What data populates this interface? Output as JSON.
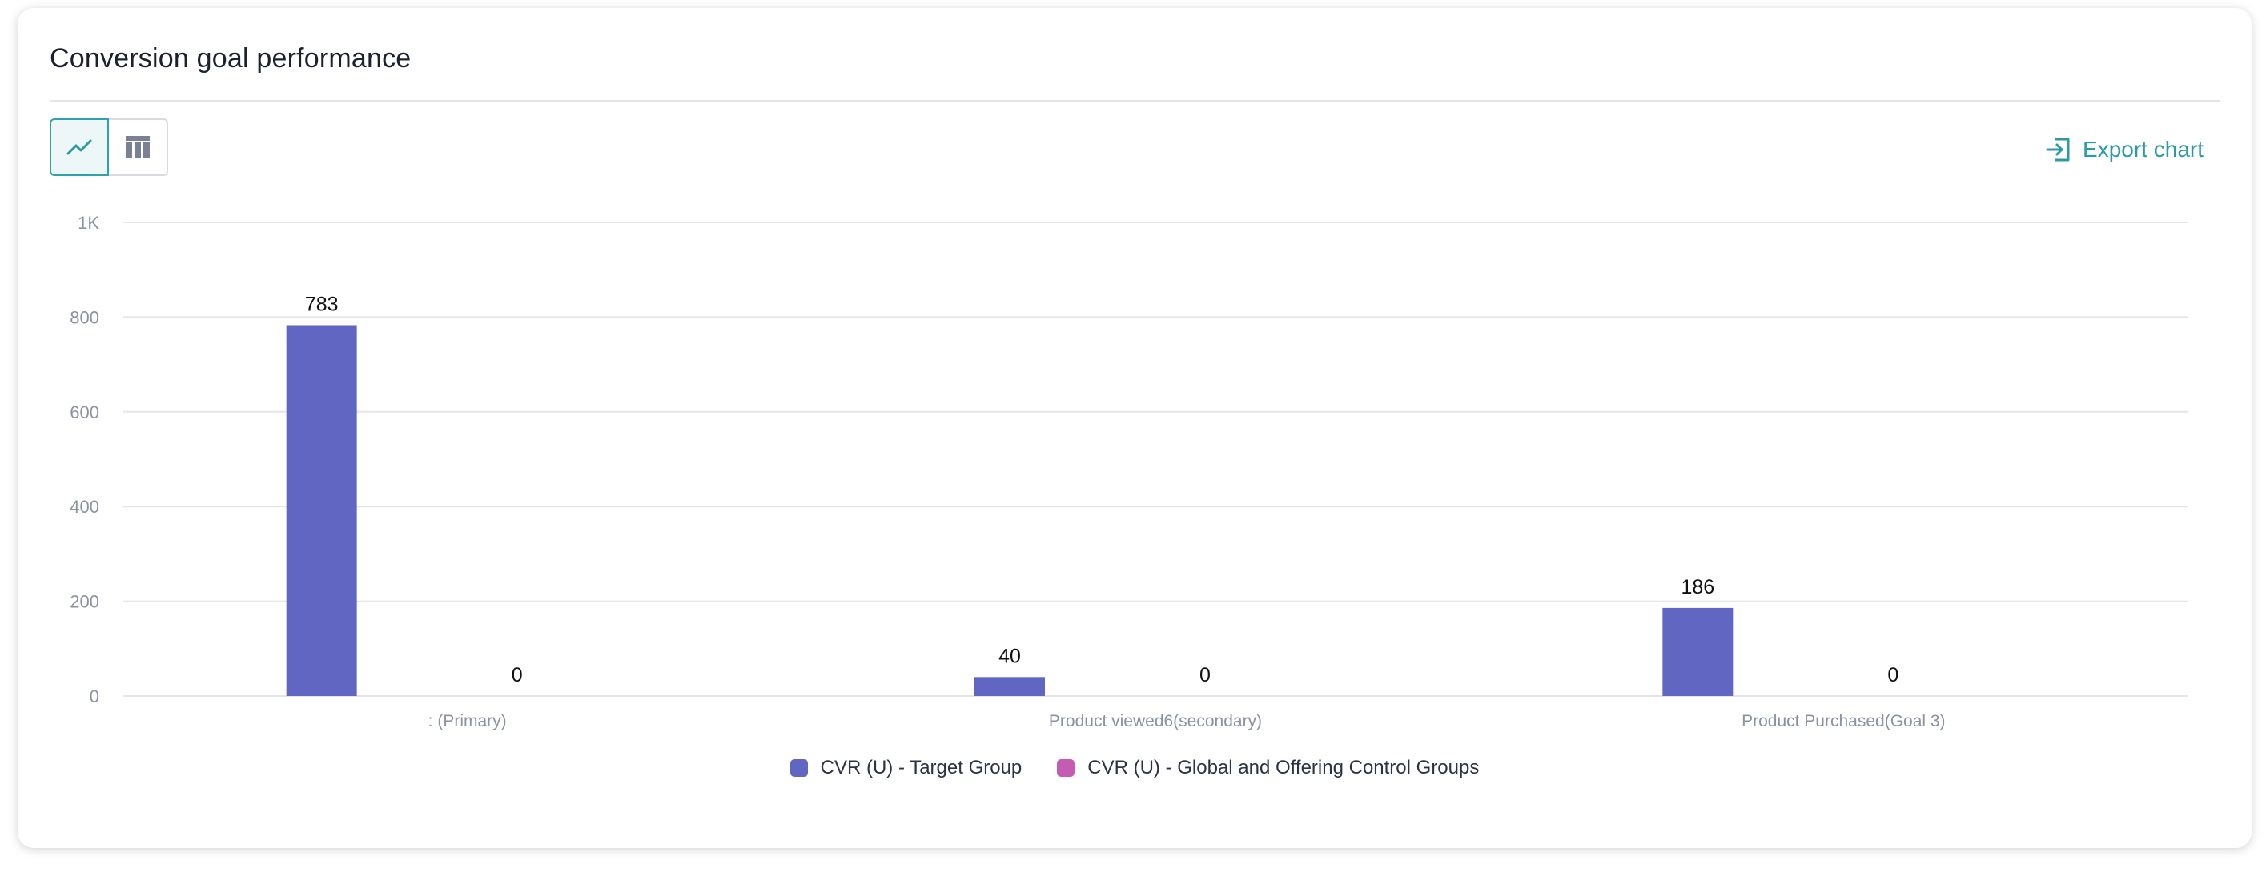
{
  "header": {
    "title": "Conversion goal performance",
    "export_label": "Export chart"
  },
  "view_toggle": {
    "options": [
      {
        "name": "line-chart",
        "icon": "line-chart-icon",
        "active": true
      },
      {
        "name": "table",
        "icon": "table-icon",
        "active": false
      }
    ]
  },
  "colors": {
    "accent": "#2a9aa4",
    "series_target": "#6166c2",
    "series_control": "#c65cb2",
    "grid": "#e4e6ec",
    "tick": "#8c92a3"
  },
  "chart_data": {
    "type": "bar",
    "categories": [
      ": (Primary)",
      "Product viewed6(secondary)",
      "Product Purchased(Goal 3)"
    ],
    "series": [
      {
        "name": "CVR (U) - Target Group",
        "values": [
          783,
          40,
          186
        ],
        "color": "#6166c2"
      },
      {
        "name": "CVR (U) - Global and Offering Control Groups",
        "values": [
          0,
          0,
          0
        ],
        "color": "#c65cb2"
      }
    ],
    "y_ticks": [
      "0",
      "200",
      "400",
      "600",
      "800",
      "1K"
    ],
    "ylim": [
      0,
      1000
    ],
    "grid": true,
    "legend_position": "bottom-center"
  }
}
